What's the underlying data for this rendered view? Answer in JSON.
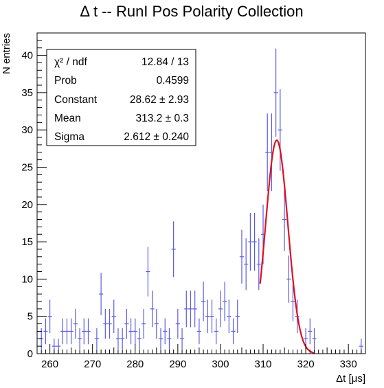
{
  "chart_data": {
    "type": "scatter",
    "title": "Δ t -- RunI Pos Polarity Collection",
    "xlabel": "Δt [μs]",
    "ylabel": "N entries",
    "xlim": [
      257,
      334
    ],
    "ylim": [
      0,
      43
    ],
    "x_ticks": [
      260,
      270,
      280,
      290,
      300,
      310,
      320,
      330
    ],
    "y_ticks": [
      0,
      5,
      10,
      15,
      20,
      25,
      30,
      35,
      40
    ],
    "bin_width": 1,
    "histogram": {
      "name": "",
      "color": "#5a5ae6",
      "x": [
        258,
        259,
        260,
        261,
        262,
        263,
        264,
        265,
        266,
        267,
        268,
        269,
        270,
        271,
        272,
        273,
        274,
        275,
        276,
        277,
        278,
        279,
        280,
        281,
        282,
        283,
        284,
        285,
        286,
        287,
        288,
        289,
        290,
        291,
        292,
        293,
        294,
        295,
        296,
        297,
        298,
        299,
        300,
        301,
        302,
        303,
        304,
        305,
        306,
        307,
        308,
        309,
        310,
        311,
        312,
        313,
        314,
        315,
        316,
        317,
        318,
        319,
        320,
        321,
        322,
        323,
        324,
        325,
        326,
        327,
        328,
        329,
        330,
        331,
        332,
        333
      ],
      "y": [
        2,
        3,
        5,
        1,
        1,
        3,
        3,
        3,
        4,
        2,
        3,
        3,
        0,
        2,
        8,
        4,
        4,
        5,
        2,
        2,
        4,
        3,
        3,
        2,
        4,
        11,
        6,
        4,
        2,
        3,
        2,
        14,
        4,
        2,
        6,
        6,
        6,
        3,
        7,
        5,
        5,
        3,
        6,
        7,
        5,
        3,
        5,
        13,
        12,
        15,
        15,
        12,
        16,
        27,
        27,
        35,
        30,
        18,
        10,
        7,
        5,
        0,
        2,
        3,
        2,
        0,
        0,
        0,
        0,
        0,
        0,
        0,
        0,
        0,
        0,
        1
      ]
    },
    "fit": {
      "type": "gaussian",
      "color": "#e01020",
      "range": [
        309.3,
        322
      ],
      "constant": 28.62,
      "mean": 313.2,
      "sigma": 2.612
    },
    "stats": [
      {
        "label": "χ² / ndf",
        "value": "12.84 / 13"
      },
      {
        "label": "Prob",
        "value": "0.4599"
      },
      {
        "label": "Constant",
        "value": "28.62 ± 2.93"
      },
      {
        "label": "Mean",
        "value": "313.2 ± 0.3"
      },
      {
        "label": "Sigma",
        "value": "2.612 ± 0.240"
      }
    ]
  }
}
